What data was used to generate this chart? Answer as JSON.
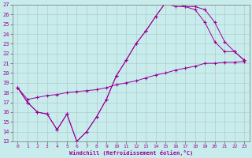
{
  "xlabel": "Windchill (Refroidissement éolien,°C)",
  "bg_color": "#c8ecec",
  "line_color": "#990099",
  "grid_color": "#b0cccc",
  "xlim": [
    -0.5,
    23.5
  ],
  "ylim": [
    13,
    27
  ],
  "xticks": [
    0,
    1,
    2,
    3,
    4,
    5,
    6,
    7,
    8,
    9,
    10,
    11,
    12,
    13,
    14,
    15,
    16,
    17,
    18,
    19,
    20,
    21,
    22,
    23
  ],
  "yticks": [
    13,
    14,
    15,
    16,
    17,
    18,
    19,
    20,
    21,
    22,
    23,
    24,
    25,
    26,
    27
  ],
  "line1_x": [
    0,
    1,
    2,
    3,
    4,
    5,
    6,
    7,
    8,
    9,
    10,
    11,
    12,
    13,
    14,
    15,
    16,
    17,
    18,
    19,
    20,
    21,
    22,
    23
  ],
  "line1_y": [
    18.5,
    17.0,
    16.0,
    15.8,
    14.2,
    15.8,
    13.0,
    14.0,
    15.5,
    17.3,
    19.7,
    21.3,
    23.0,
    24.3,
    25.8,
    27.2,
    27.2,
    26.8,
    26.8,
    26.5,
    25.2,
    23.2,
    22.2,
    21.3
  ],
  "line2_x": [
    0,
    1,
    2,
    3,
    4,
    5,
    6,
    7,
    8,
    9,
    10,
    11,
    12,
    13,
    14,
    15,
    16,
    17,
    18,
    19,
    20,
    21,
    22,
    23
  ],
  "line2_y": [
    18.5,
    17.0,
    16.0,
    15.8,
    14.2,
    15.8,
    13.0,
    14.0,
    15.5,
    17.3,
    19.7,
    21.3,
    23.0,
    24.3,
    25.8,
    27.2,
    26.8,
    26.8,
    26.5,
    25.2,
    23.2,
    22.2,
    22.2,
    21.3
  ],
  "line3_x": [
    0,
    1,
    2,
    3,
    4,
    5,
    6,
    7,
    8,
    9,
    10,
    11,
    12,
    13,
    14,
    15,
    16,
    17,
    18,
    19,
    20,
    21,
    22,
    23
  ],
  "line3_y": [
    18.5,
    17.3,
    17.5,
    17.7,
    17.8,
    18.0,
    18.1,
    18.2,
    18.3,
    18.5,
    18.8,
    19.0,
    19.2,
    19.5,
    19.8,
    20.0,
    20.3,
    20.5,
    20.7,
    21.0,
    21.0,
    21.1,
    21.1,
    21.2
  ]
}
